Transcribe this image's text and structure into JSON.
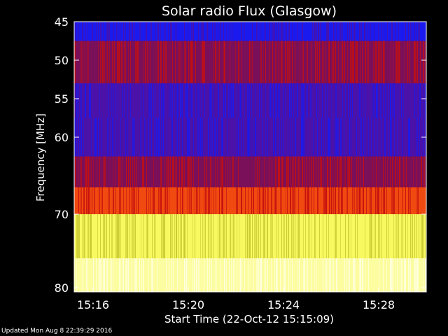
{
  "footer": {
    "updated": "Updated Mon Aug  8 22:39:29 2016"
  },
  "chart_data": {
    "type": "heatmap",
    "title": "Solar radio Flux (Glasgow)",
    "xlabel": "Start Time (22-Oct-12 15:15:09)",
    "ylabel": "Frequency [MHz]",
    "y_ticks": [
      "45",
      "50",
      "55",
      "60",
      "70",
      "80"
    ],
    "x_ticks": [
      "15:16",
      "15:20",
      "15:24",
      "15:28"
    ],
    "frequency_bands": [
      {
        "from_mhz": 45,
        "to_mhz": 47.5,
        "dominant": "blue",
        "streak": "purple"
      },
      {
        "from_mhz": 47.5,
        "to_mhz": 53,
        "dominant": "darkred",
        "streak": "red"
      },
      {
        "from_mhz": 53,
        "to_mhz": 57.5,
        "dominant": "purple",
        "streak": "blue"
      },
      {
        "from_mhz": 57.5,
        "to_mhz": 62.5,
        "dominant": "purple",
        "streak": "blue"
      },
      {
        "from_mhz": 62.5,
        "to_mhz": 66.5,
        "dominant": "darkred",
        "streak": "red"
      },
      {
        "from_mhz": 66.5,
        "to_mhz": 70,
        "dominant": "orange",
        "streak": "red"
      },
      {
        "from_mhz": 70,
        "to_mhz": 76,
        "dominant": "yellow",
        "streak": "olive"
      },
      {
        "from_mhz": 76,
        "to_mhz": 80.5,
        "dominant": "paleyellow",
        "streak": "white"
      }
    ],
    "colors": {
      "blue": "#1a1aee",
      "purple": "#4a12a8",
      "darkred": "#7a0f5a",
      "red": "#c41010",
      "orange": "#f04a10",
      "yellow": "#f8f860",
      "olive": "#c8c830",
      "paleyellow": "#fcfca0",
      "white": "#ffffe0",
      "axis": "#ffffff",
      "background": "#000000"
    }
  }
}
